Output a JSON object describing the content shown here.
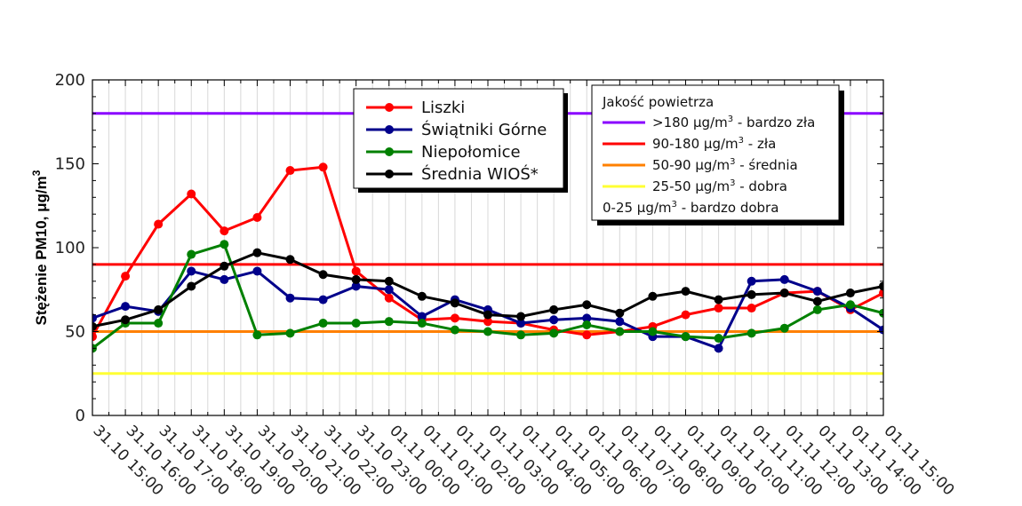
{
  "chart_data": {
    "type": "line",
    "title": "",
    "xlabel": "",
    "ylabel": "Stężenie PM10, μg/m³",
    "ylabel_main": "Stężenie PM10, μg/m",
    "ylabel_sup": "3",
    "ylim": [
      0,
      200
    ],
    "yticks": [
      0,
      50,
      100,
      150,
      200
    ],
    "grid": "vertical",
    "categories": [
      "31.10 15:00",
      "31.10 16:00",
      "31.10 17:00",
      "31.10 18:00",
      "31.10 19:00",
      "31.10 20:00",
      "31.10 21:00",
      "31.10 22:00",
      "31.10 23:00",
      "01.11 00:00",
      "01.11 01:00",
      "01.11 02:00",
      "01.11 03:00",
      "01.11 04:00",
      "01.11 05:00",
      "01.11 06:00",
      "01.11 07:00",
      "01.11 08:00",
      "01.11 09:00",
      "01.11 10:00",
      "01.11 11:00",
      "01.11 12:00",
      "01.11 13:00",
      "01.11 14:00",
      "01.11 15:00"
    ],
    "series": [
      {
        "name": "Liszki",
        "color": "#ff0000",
        "x": [
          0,
          1,
          2,
          3,
          4,
          5,
          6,
          7,
          8,
          9,
          10,
          11,
          12,
          13,
          14,
          15,
          16,
          17,
          18,
          19,
          20,
          21,
          22,
          23,
          24
        ],
        "values": [
          47,
          83,
          114,
          132,
          110,
          118,
          146,
          148,
          86,
          70,
          57,
          58,
          56,
          55,
          51,
          48,
          50,
          53,
          60,
          64,
          64,
          73,
          74,
          63,
          73
        ]
      },
      {
        "name": "Świątniki Górne",
        "color": "#00008b",
        "x": [
          0,
          1,
          2,
          3,
          4,
          5,
          6,
          7,
          8,
          9,
          10,
          11,
          12,
          13,
          14,
          15,
          16,
          17,
          18,
          19,
          20,
          21,
          22,
          23,
          24
        ],
        "values": [
          58,
          65,
          62,
          86,
          81,
          86,
          70,
          69,
          77,
          75,
          59,
          69,
          63,
          55,
          57,
          58,
          56,
          47,
          47,
          40,
          80,
          81,
          74,
          64,
          51
        ]
      },
      {
        "name": "Niepołomice",
        "color": "#008000",
        "x": [
          0,
          1,
          2,
          3,
          4,
          5,
          6,
          7,
          8,
          9,
          10,
          11,
          12,
          13,
          14,
          15,
          16,
          17,
          18,
          19,
          20,
          21,
          22,
          23,
          24
        ],
        "values": [
          40,
          55,
          55,
          96,
          102,
          48,
          49,
          55,
          55,
          56,
          55,
          51,
          50,
          48,
          49,
          54,
          50,
          50,
          47,
          46,
          49,
          52,
          63,
          66,
          61
        ]
      },
      {
        "name": "Średnia WIOŚ*",
        "color": "#000000",
        "x": [
          0,
          1,
          2,
          3,
          4,
          5,
          6,
          7,
          8,
          9,
          10,
          11,
          12,
          13,
          14,
          15,
          16,
          17,
          18,
          19,
          20,
          21,
          22,
          23,
          24
        ],
        "values": [
          53,
          57,
          63,
          77,
          89,
          97,
          93,
          84,
          81,
          80,
          71,
          67,
          60,
          59,
          63,
          66,
          61,
          71,
          74,
          69,
          72,
          73,
          68,
          73,
          77
        ]
      }
    ],
    "reference_lines": [
      {
        "value": 180,
        "color": "#8a00ff"
      },
      {
        "value": 90,
        "color": "#ff0000"
      },
      {
        "value": 50,
        "color": "#ff8000"
      },
      {
        "value": 25,
        "color": "#ffff33"
      }
    ],
    "legend": {
      "placement": "top-center"
    },
    "quality_legend": {
      "placement": "top-right",
      "title": "Jakość powietrza",
      "items": [
        {
          "main": ">180 μg/m",
          "sup": "3",
          "rest": " - bardzo zła",
          "color": "#8a00ff"
        },
        {
          "main": "90-180 μg/m",
          "sup": "3",
          "rest": " - zła",
          "color": "#ff0000"
        },
        {
          "main": "50-90 μg/m",
          "sup": "3",
          "rest": " - średnia",
          "color": "#ff8000"
        },
        {
          "main": "25-50 μg/m",
          "sup": "3",
          "rest": " - dobra",
          "color": "#ffff33"
        },
        {
          "main": "0-25 μg/m",
          "sup": "3",
          "rest": " - bardzo dobra",
          "color": ""
        }
      ]
    }
  }
}
